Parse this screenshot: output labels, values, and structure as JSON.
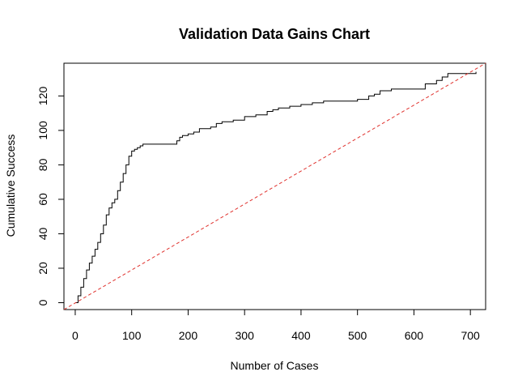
{
  "chart_data": {
    "type": "line",
    "title": "Validation Data Gains Chart",
    "xlabel": "Number of Cases",
    "ylabel": "Cumulative Success",
    "xlim": [
      -20,
      727
    ],
    "ylim": [
      -4,
      139
    ],
    "x_ticks": [
      0,
      100,
      200,
      300,
      400,
      500,
      600,
      700
    ],
    "y_ticks": [
      0,
      20,
      40,
      60,
      80,
      100,
      120
    ],
    "grid": false,
    "legend": "none",
    "series": [
      {
        "style": "solid-step",
        "color": "#000000",
        "x": [
          0,
          5,
          10,
          15,
          20,
          25,
          30,
          35,
          40,
          45,
          50,
          55,
          60,
          65,
          70,
          75,
          80,
          85,
          90,
          95,
          100,
          105,
          110,
          115,
          120,
          130,
          140,
          150,
          160,
          170,
          175,
          180,
          185,
          190,
          200,
          210,
          220,
          240,
          250,
          260,
          280,
          300,
          320,
          340,
          350,
          360,
          380,
          400,
          420,
          440,
          460,
          480,
          500,
          520,
          530,
          540,
          560,
          600,
          620,
          640,
          650,
          660,
          700,
          710
        ],
        "y": [
          0,
          4,
          9,
          14,
          19,
          23,
          27,
          31,
          35,
          40,
          45,
          51,
          55,
          58,
          60,
          65,
          70,
          75,
          80,
          85,
          88,
          89,
          90,
          91,
          92,
          92,
          92,
          92,
          92,
          92,
          92,
          94,
          96,
          97,
          98,
          99,
          101,
          102,
          104,
          105,
          106,
          108,
          109,
          111,
          112,
          113,
          114,
          115,
          116,
          117,
          117,
          117,
          118,
          120,
          121,
          123,
          124,
          124,
          127,
          129,
          131,
          133,
          133,
          134
        ]
      },
      {
        "style": "dashed",
        "color": "#e0322e",
        "x": [
          -20,
          727
        ],
        "y": [
          -4,
          139
        ]
      }
    ]
  }
}
